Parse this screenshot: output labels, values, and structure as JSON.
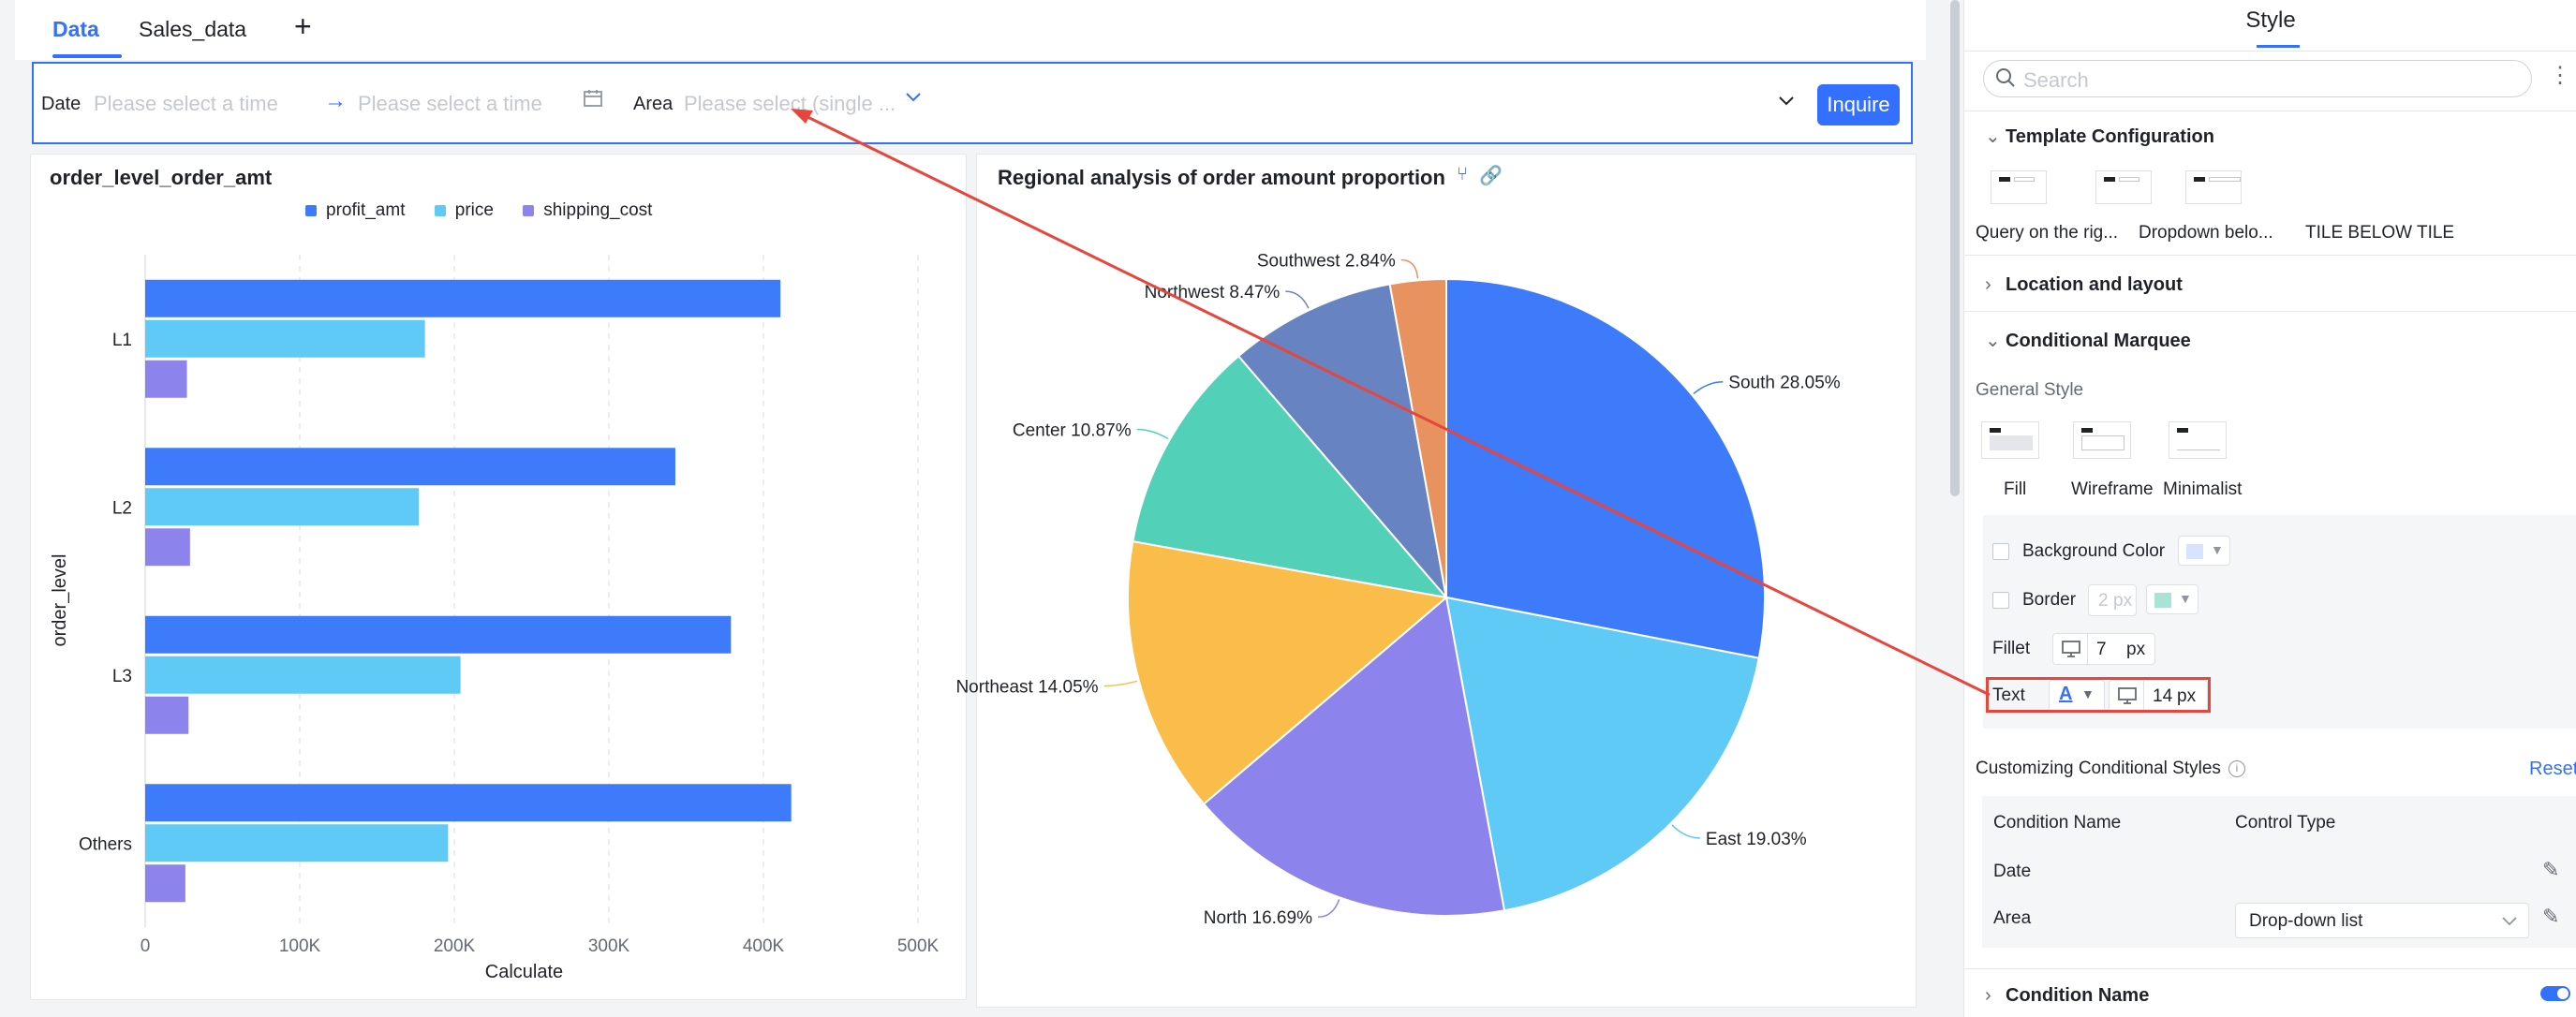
{
  "tabs": [
    {
      "label": "Data",
      "active": true
    },
    {
      "label": "Sales_data",
      "active": false
    }
  ],
  "add_tab_icon": "plus-icon",
  "query": {
    "date_label": "Date",
    "date_start_placeholder": "Please select a time",
    "date_end_placeholder": "Please select a time",
    "area_label": "Area",
    "area_placeholder": "Please select (single ...",
    "inquire_label": "Inquire"
  },
  "bar_card": {
    "title": "order_level_order_amt"
  },
  "pie_card": {
    "title": "Regional analysis of order amount proportion"
  },
  "chart_data": [
    {
      "type": "bar",
      "orientation": "horizontal",
      "title": "order_level_order_amt",
      "xlabel": "Calculate",
      "ylabel": "order_level",
      "categories": [
        "L1",
        "L2",
        "L3",
        "Others"
      ],
      "x_ticks": [
        "0",
        "100K",
        "200K",
        "300K",
        "400K",
        "500K"
      ],
      "xlim": [
        0,
        500000
      ],
      "legend": "top",
      "grid": true,
      "series": [
        {
          "name": "profit_amt",
          "color": "#3e7bfa",
          "values": [
            411000,
            343000,
            379000,
            418000
          ]
        },
        {
          "name": "price",
          "color": "#5fcaf5",
          "values": [
            181000,
            177000,
            204000,
            196000
          ]
        },
        {
          "name": "shipping_cost",
          "color": "#8d83ec",
          "values": [
            27000,
            29000,
            28000,
            26000
          ]
        }
      ]
    },
    {
      "type": "pie",
      "title": "Regional analysis of order amount proportion",
      "slices": [
        {
          "label": "South 28.05%",
          "value": 28.05,
          "color": "#3e7bfa"
        },
        {
          "label": "East 19.03%",
          "value": 19.03,
          "color": "#5fcaf5"
        },
        {
          "label": "North 16.69%",
          "value": 16.69,
          "color": "#8d83ec"
        },
        {
          "label": "Northeast 14.05%",
          "value": 14.05,
          "color": "#fbbd4a"
        },
        {
          "label": "Center 10.87%",
          "value": 10.87,
          "color": "#52d1b8"
        },
        {
          "label": "Northwest 8.47%",
          "value": 8.47,
          "color": "#6783c2"
        },
        {
          "label": "Southwest 2.84%",
          "value": 2.84,
          "color": "#e8925f"
        }
      ]
    }
  ],
  "panel": {
    "title": "Style",
    "search_placeholder": "Search",
    "template_config": {
      "heading": "Template Configuration",
      "options": [
        "Query on the rig...",
        "Dropdown belo...",
        "TILE BELOW TILE"
      ]
    },
    "location_heading": "Location and layout",
    "marquee": {
      "heading": "Conditional Marquee",
      "general_style": "General Style",
      "styles": [
        "Fill",
        "Wireframe",
        "Minimalist"
      ],
      "background_color_label": "Background Color",
      "background_color": "#d6e4ff",
      "border_label": "Border",
      "border_width": "2",
      "border_unit": "px",
      "border_color": "#a8e3d3",
      "fillet_label": "Fillet",
      "fillet_value": "7",
      "fillet_unit": "px",
      "text_label": "Text",
      "text_font_icon": "font-color-icon",
      "text_size": "14",
      "text_unit": "px"
    },
    "custom_styles": {
      "heading": "Customizing Conditional Styles",
      "reset_label": "Reset",
      "col_name": "Condition Name",
      "col_type": "Control Type",
      "rows": [
        {
          "name": "Date",
          "type": ""
        },
        {
          "name": "Area",
          "type": "Drop-down list"
        }
      ]
    },
    "condition_name_heading": "Condition Name"
  }
}
